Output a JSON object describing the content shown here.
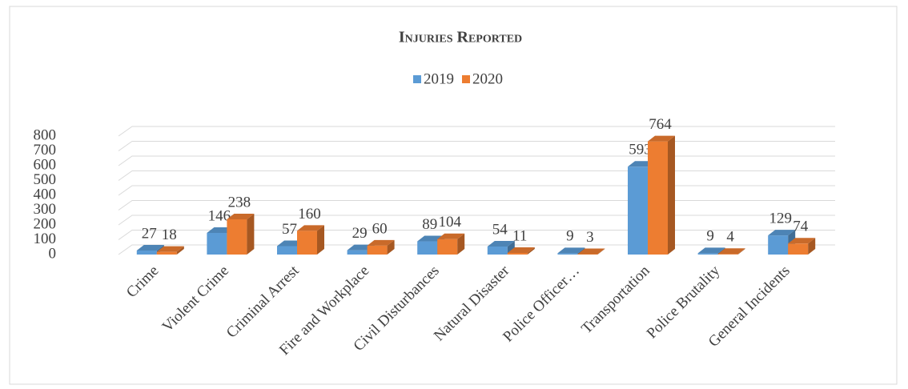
{
  "chart_data": {
    "type": "bar3d",
    "title": "Injuries Reported",
    "categories": [
      "Crime",
      "Violent Crime",
      "Criminal Arrest",
      "Fire and Workplace",
      "Civil Disturbances",
      "Natural Disaster",
      "Police Officer…",
      "Transportation",
      "Police Brutality",
      "General Incidents"
    ],
    "series": [
      {
        "name": "2019",
        "color": "#5b9bd5",
        "values": [
          27,
          146,
          57,
          29,
          89,
          54,
          9,
          593,
          9,
          129
        ]
      },
      {
        "name": "2020",
        "color": "#ed7d31",
        "values": [
          18,
          238,
          160,
          60,
          104,
          11,
          3,
          764,
          4,
          74
        ]
      }
    ],
    "ylim": [
      0,
      800
    ],
    "yticks": [
      0,
      100,
      200,
      300,
      400,
      500,
      600,
      700,
      800
    ],
    "grid": true,
    "legend": "top"
  }
}
